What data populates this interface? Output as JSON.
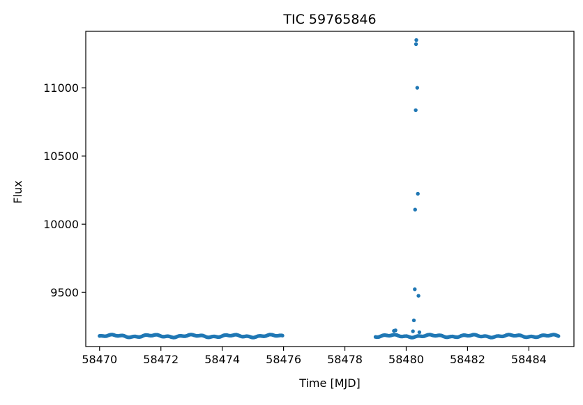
{
  "chart_data": {
    "type": "scatter",
    "title": "TIC 59765846",
    "xlabel": "Time [MJD]",
    "ylabel": "Flux",
    "xlim": [
      58469.55,
      58485.47
    ],
    "ylim": [
      9103,
      11414
    ],
    "xticks": [
      58470,
      58472,
      58474,
      58476,
      58478,
      58480,
      58482,
      58484
    ],
    "yticks": [
      9500,
      10000,
      10500,
      11000
    ],
    "grid": false,
    "marker_color": "#1f77b4",
    "series": [
      {
        "segments": [
          {
            "x_start": 58470.0,
            "x_end": 58476.0,
            "step": 0.0417,
            "baseline": 9180,
            "amplitude": 7
          },
          {
            "x_start": 58479.0,
            "x_end": 58485.0,
            "step": 0.0417,
            "baseline": 9180,
            "amplitude": 7
          }
        ],
        "points": [
          {
            "x": 58479.6,
            "y": 9218
          },
          {
            "x": 58479.65,
            "y": 9222
          },
          {
            "x": 58480.22,
            "y": 9215
          },
          {
            "x": 58480.25,
            "y": 9295
          },
          {
            "x": 58480.28,
            "y": 9523
          },
          {
            "x": 58480.29,
            "y": 10107
          },
          {
            "x": 58480.31,
            "y": 10836
          },
          {
            "x": 58480.32,
            "y": 11320
          },
          {
            "x": 58480.33,
            "y": 11350
          },
          {
            "x": 58480.36,
            "y": 11000
          },
          {
            "x": 58480.38,
            "y": 10223
          },
          {
            "x": 58480.4,
            "y": 9475
          },
          {
            "x": 58480.43,
            "y": 9208
          }
        ]
      }
    ]
  }
}
